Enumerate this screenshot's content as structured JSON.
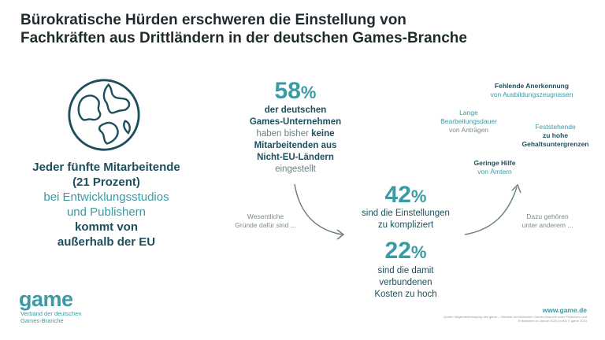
{
  "title_line1": "Bürokratische Hürden erschweren die Einstellung von",
  "title_line2": "Fachkräften aus Drittländern in der deutschen Games-Branche",
  "left": {
    "line1": "Jeder fünfte Mitarbeitende",
    "line2": "(21 Prozent)",
    "line3": "bei Entwicklungsstudios",
    "line4": "und Publishern",
    "line5": "kommt von",
    "line6": "außerhalb der EU"
  },
  "stat58": {
    "number": "58",
    "unit": "%",
    "line1": "der deutschen",
    "line2": "Games-Unternehmen",
    "line3a": "haben bisher ",
    "line3b": "keine",
    "line4": "Mitarbeitenden aus",
    "line5": "Nicht-EU-Ländern",
    "line6": "eingestellt"
  },
  "stat42": {
    "number": "42",
    "unit": "%",
    "line1": "sind die Einstellungen",
    "line2": "zu kompliziert"
  },
  "stat22": {
    "number": "22",
    "unit": "%",
    "line1": "sind die damit",
    "line2": "verbundenen",
    "line3": "Kosten zu hoch"
  },
  "wesentlich": {
    "line1": "Wesentliche",
    "line2": "Gründe dafür sind ..."
  },
  "dazu": {
    "line1": "Dazu gehören",
    "line2": "unter anderem ..."
  },
  "reasons": {
    "r1_bold": "Fehlende Anerkennung",
    "r1_normal": "von Ausbildungszeugnissen",
    "r2_line1": "Lange",
    "r2_line2": "Bearbeitungsdauer",
    "r2_line3": "von Anträgen",
    "r3_line1": "Feststehende",
    "r3_line2": "zu hohe",
    "r3_line3": "Gehaltsuntergrenzen",
    "r4_bold": "Geringe Hilfe",
    "r4_normal": "von Ämtern"
  },
  "logo": {
    "word": "game",
    "sub1": "Verband der deutschen",
    "sub2": "Games-Branche"
  },
  "url": "www.game.de",
  "source": "Quelle: Mitgliederbefragung des game – Verband der deutschen Games-Branche unter Publishern und Entwicklern im Januar 2023 (n=84) © game 2023",
  "colors": {
    "teal_dark": "#1d4f5c",
    "teal_light": "#3a9aa6",
    "grey": "#7a8a8f"
  },
  "icons": [
    "globe-icon"
  ]
}
